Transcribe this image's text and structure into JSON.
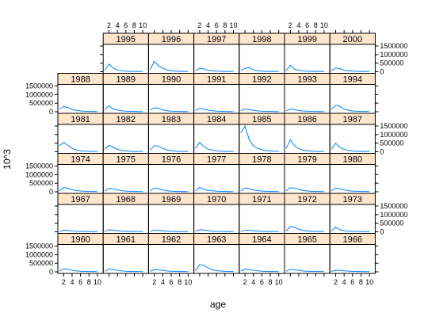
{
  "chart_data": {
    "type": "line",
    "xlabel": "age",
    "ylabel": "10^3",
    "xlim": [
      1,
      11
    ],
    "ylim": [
      0,
      1500000
    ],
    "x_ticks": [
      2,
      4,
      6,
      8,
      10
    ],
    "y_ticks": [
      0,
      500000,
      1000000,
      1500000
    ],
    "x": [
      1,
      2,
      3,
      4,
      5,
      6,
      7,
      8,
      9,
      10
    ],
    "colors": {
      "line": "#0080ff",
      "strip": "#ffe5cc",
      "border": "#000000"
    },
    "panels": [
      {
        "year": "1960",
        "values": [
          40000,
          180000,
          150000,
          90000,
          55000,
          35000,
          25000,
          20000,
          15000,
          12000
        ]
      },
      {
        "year": "1961",
        "values": [
          30000,
          160000,
          140000,
          90000,
          55000,
          35000,
          25000,
          20000,
          15000,
          12000
        ]
      },
      {
        "year": "1962",
        "values": [
          30000,
          130000,
          120000,
          80000,
          50000,
          35000,
          25000,
          20000,
          15000,
          12000
        ]
      },
      {
        "year": "1963",
        "values": [
          60000,
          420000,
          380000,
          220000,
          120000,
          70000,
          45000,
          30000,
          22000,
          18000
        ]
      },
      {
        "year": "1964",
        "values": [
          40000,
          160000,
          140000,
          90000,
          55000,
          35000,
          25000,
          20000,
          15000,
          12000
        ]
      },
      {
        "year": "1965",
        "values": [
          30000,
          140000,
          130000,
          85000,
          50000,
          35000,
          25000,
          20000,
          15000,
          12000
        ]
      },
      {
        "year": "1966",
        "values": [
          25000,
          90000,
          85000,
          60000,
          40000,
          30000,
          22000,
          18000,
          14000,
          11000
        ]
      },
      {
        "year": "1967",
        "values": [
          20000,
          90000,
          80000,
          55000,
          35000,
          25000,
          18000,
          14000,
          11000,
          9000
        ]
      },
      {
        "year": "1968",
        "values": [
          25000,
          120000,
          100000,
          70000,
          45000,
          30000,
          20000,
          15000,
          12000,
          10000
        ]
      },
      {
        "year": "1969",
        "values": [
          20000,
          100000,
          90000,
          60000,
          40000,
          25000,
          18000,
          14000,
          11000,
          9000
        ]
      },
      {
        "year": "1970",
        "values": [
          20000,
          120000,
          100000,
          70000,
          40000,
          25000,
          18000,
          14000,
          11000,
          9000
        ]
      },
      {
        "year": "1971",
        "values": [
          20000,
          100000,
          90000,
          60000,
          40000,
          25000,
          18000,
          14000,
          11000,
          9000
        ]
      },
      {
        "year": "1972",
        "values": [
          50000,
          320000,
          260000,
          150000,
          80000,
          45000,
          30000,
          20000,
          15000,
          12000
        ]
      },
      {
        "year": "1973",
        "values": [
          40000,
          280000,
          120000,
          70000,
          40000,
          25000,
          18000,
          14000,
          11000,
          9000
        ]
      },
      {
        "year": "1974",
        "values": [
          60000,
          250000,
          200000,
          120000,
          70000,
          45000,
          30000,
          20000,
          15000,
          12000
        ]
      },
      {
        "year": "1975",
        "values": [
          40000,
          200000,
          170000,
          110000,
          65000,
          40000,
          28000,
          20000,
          15000,
          12000
        ]
      },
      {
        "year": "1976",
        "values": [
          40000,
          220000,
          180000,
          110000,
          60000,
          35000,
          25000,
          18000,
          14000,
          11000
        ]
      },
      {
        "year": "1977",
        "values": [
          50000,
          260000,
          140000,
          90000,
          55000,
          35000,
          25000,
          18000,
          14000,
          11000
        ]
      },
      {
        "year": "1978",
        "values": [
          50000,
          220000,
          180000,
          110000,
          65000,
          40000,
          28000,
          20000,
          15000,
          12000
        ]
      },
      {
        "year": "1979",
        "values": [
          60000,
          230000,
          220000,
          140000,
          80000,
          45000,
          30000,
          20000,
          15000,
          12000
        ]
      },
      {
        "year": "1980",
        "values": [
          60000,
          220000,
          180000,
          110000,
          65000,
          40000,
          28000,
          20000,
          15000,
          12000
        ]
      },
      {
        "year": "1981",
        "values": [
          350000,
          550000,
          380000,
          200000,
          110000,
          65000,
          40000,
          28000,
          20000,
          15000
        ]
      },
      {
        "year": "1982",
        "values": [
          150000,
          380000,
          260000,
          140000,
          80000,
          45000,
          30000,
          20000,
          15000,
          12000
        ]
      },
      {
        "year": "1983",
        "values": [
          100000,
          350000,
          330000,
          200000,
          110000,
          60000,
          38000,
          25000,
          18000,
          14000
        ]
      },
      {
        "year": "1984",
        "values": [
          200000,
          550000,
          300000,
          160000,
          90000,
          55000,
          35000,
          24000,
          18000,
          14000
        ]
      },
      {
        "year": "1985",
        "values": [
          1100000,
          1500000,
          700000,
          350000,
          200000,
          120000,
          75000,
          50000,
          35000,
          25000
        ]
      },
      {
        "year": "1986",
        "values": [
          200000,
          700000,
          350000,
          180000,
          100000,
          60000,
          38000,
          26000,
          19000,
          14000
        ]
      },
      {
        "year": "1987",
        "values": [
          150000,
          500000,
          250000,
          140000,
          80000,
          45000,
          30000,
          20000,
          15000,
          12000
        ]
      },
      {
        "year": "1988",
        "values": [
          150000,
          300000,
          250000,
          140000,
          80000,
          45000,
          30000,
          20000,
          15000,
          12000
        ]
      },
      {
        "year": "1989",
        "values": [
          120000,
          350000,
          160000,
          100000,
          60000,
          35000,
          25000,
          18000,
          14000,
          11000
        ]
      },
      {
        "year": "1990",
        "values": [
          100000,
          230000,
          200000,
          110000,
          60000,
          35000,
          25000,
          18000,
          14000,
          11000
        ]
      },
      {
        "year": "1991",
        "values": [
          80000,
          200000,
          150000,
          90000,
          55000,
          35000,
          25000,
          18000,
          14000,
          11000
        ]
      },
      {
        "year": "1992",
        "values": [
          60000,
          160000,
          140000,
          80000,
          50000,
          30000,
          22000,
          16000,
          12000,
          10000
        ]
      },
      {
        "year": "1993",
        "values": [
          60000,
          150000,
          120000,
          70000,
          45000,
          28000,
          20000,
          15000,
          12000,
          10000
        ]
      },
      {
        "year": "1994",
        "values": [
          150000,
          380000,
          320000,
          150000,
          80000,
          45000,
          30000,
          20000,
          15000,
          12000
        ]
      },
      {
        "year": "1995",
        "values": [
          80000,
          450000,
          220000,
          100000,
          55000,
          35000,
          25000,
          18000,
          14000,
          11000
        ]
      },
      {
        "year": "1996",
        "values": [
          120000,
          600000,
          350000,
          200000,
          110000,
          60000,
          38000,
          26000,
          19000,
          14000
        ]
      },
      {
        "year": "1997",
        "values": [
          60000,
          200000,
          160000,
          90000,
          55000,
          35000,
          25000,
          18000,
          14000,
          11000
        ]
      },
      {
        "year": "1998",
        "values": [
          60000,
          200000,
          250000,
          100000,
          55000,
          35000,
          25000,
          18000,
          14000,
          11000
        ]
      },
      {
        "year": "1999",
        "values": [
          60000,
          380000,
          150000,
          80000,
          50000,
          30000,
          22000,
          16000,
          12000,
          10000
        ]
      },
      {
        "year": "2000",
        "values": [
          60000,
          220000,
          180000,
          90000,
          55000,
          35000,
          25000,
          18000,
          14000,
          11000
        ]
      }
    ]
  }
}
